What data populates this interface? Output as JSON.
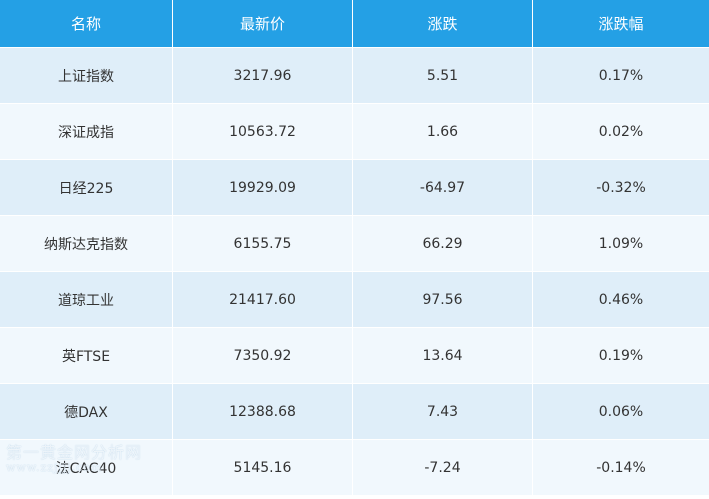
{
  "table": {
    "headers": [
      "名称",
      "最新价",
      "涨跌",
      "涨跌幅"
    ],
    "rows": [
      {
        "name": "上证指数",
        "price": "3217.96",
        "change": "5.51",
        "pct": "0.17%"
      },
      {
        "name": "深证成指",
        "price": "10563.72",
        "change": "1.66",
        "pct": "0.02%"
      },
      {
        "name": "日经225",
        "price": "19929.09",
        "change": "-64.97",
        "pct": "-0.32%"
      },
      {
        "name": "纳斯达克指数",
        "price": "6155.75",
        "change": "66.29",
        "pct": "1.09%"
      },
      {
        "name": "道琼工业",
        "price": "21417.60",
        "change": "97.56",
        "pct": "0.46%"
      },
      {
        "name": "英FTSE",
        "price": "7350.92",
        "change": "13.64",
        "pct": "0.19%"
      },
      {
        "name": "德DAX",
        "price": "12388.68",
        "change": "7.43",
        "pct": "0.06%"
      },
      {
        "name": "法CAC40",
        "price": "5145.16",
        "change": "-7.24",
        "pct": "-0.14%"
      }
    ]
  },
  "colors": {
    "header_bg": "#24a0e5",
    "row_odd": "#dfeef9",
    "row_even": "#f1f8fd"
  },
  "watermark": {
    "line1": "第一黄金网分析网",
    "line2": "www.zzjjjj.com"
  }
}
